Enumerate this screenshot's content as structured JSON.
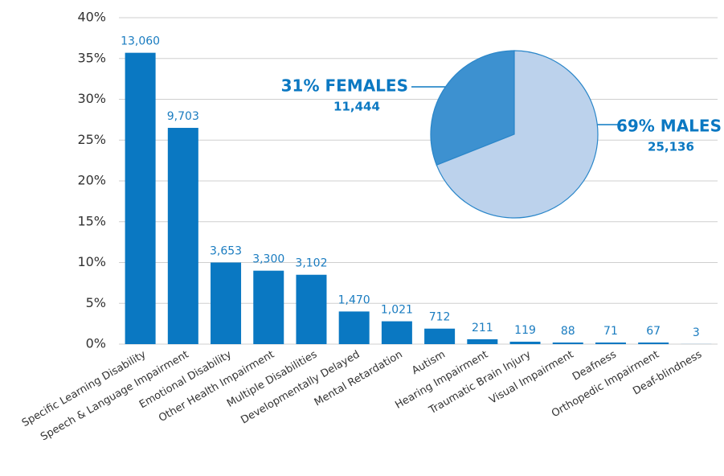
{
  "chart_data": [
    {
      "type": "bar",
      "categories": [
        "Specific Learning Disability",
        "Speech & Language Impairment",
        "Emotional Disability",
        "Other Health Impairment",
        "Multiple Disabilities",
        "Developmentally Delayed",
        "Mental Retardation",
        "Autism",
        "Hearing Impairment",
        "Traumatic Brain Injury",
        "Visual Impairment",
        "Deafness",
        "Orthopedic Impairment",
        "Deaf-blindness"
      ],
      "series": [
        {
          "color": "#0a78c2",
          "values": [
            35.7,
            26.5,
            10.0,
            9.0,
            8.5,
            4.0,
            2.8,
            1.9,
            0.6,
            0.3,
            0.2,
            0.2,
            0.2,
            0.01
          ],
          "data_labels": [
            "13,060",
            "9,703",
            "3,653",
            "3,300",
            "3,102",
            "1,470",
            "1,021",
            "712",
            "211",
            "119",
            "88",
            "71",
            "67",
            "3"
          ]
        }
      ],
      "ylim": [
        0,
        40
      ],
      "yticks": [
        {
          "value": 0,
          "label": "0%"
        },
        {
          "value": 5,
          "label": "5%"
        },
        {
          "value": 10,
          "label": "10%"
        },
        {
          "value": 15,
          "label": "15%"
        },
        {
          "value": 20,
          "label": "20%"
        },
        {
          "value": 25,
          "label": "25%"
        },
        {
          "value": 30,
          "label": "30%"
        },
        {
          "value": 35,
          "label": "35%"
        },
        {
          "value": 40,
          "label": "40%"
        }
      ],
      "grid": true
    },
    {
      "type": "pie",
      "labels": [
        "31% FEMALES",
        "69% MALES"
      ],
      "values": [
        31,
        69
      ],
      "count_labels": [
        "11,444",
        "25,136"
      ],
      "colors": [
        "#3d91d0",
        "#bcd2ec"
      ]
    }
  ]
}
